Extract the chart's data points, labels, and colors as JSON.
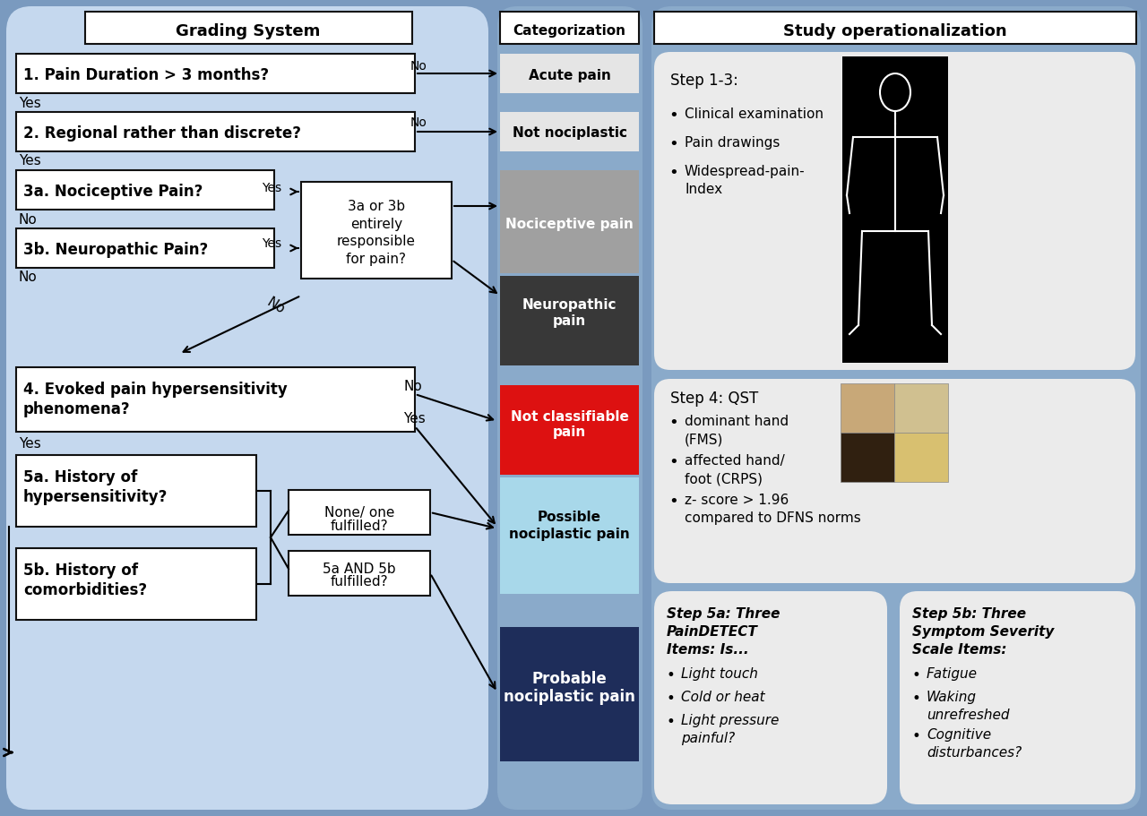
{
  "fig_width": 12.8,
  "fig_height": 9.11,
  "bg_outer": "#7a9abf",
  "bg_left_panel": "#c5d8ee",
  "bg_mid_panel": "#8aaaca",
  "bg_right_panel": "#8aaaca",
  "box_white": "#ffffff",
  "box_gray": "#a0a0a0",
  "box_dark_gray": "#383838",
  "box_red": "#dd1111",
  "box_light_blue": "#a8d8ea",
  "box_dark_blue": "#1e2d5a",
  "text_black": "#000000",
  "text_white": "#ffffff",
  "title_left": "Grading System",
  "title_mid": "Categorization",
  "title_right": "Study operationalization",
  "q1": "1. Pain Duration > 3 months?",
  "q2": "2. Regional rather than discrete?",
  "q3a": "3a. Nociceptive Pain?",
  "q3b": "3b. Neuropathic Pain?",
  "q3ab_box": "3a or 3b\nentirely\nresponsible\nfor pain?",
  "q4_line1": "4. Evoked pain hypersensitivity",
  "q4_line2": "phenomena?",
  "q5a_line1": "5a. History of",
  "q5a_line2": "hypersensitivity?",
  "q5b_line1": "5b. History of",
  "q5b_line2": "comorbidities?",
  "none_one_line1": "None/ one",
  "none_one_line2": "fulfilled?",
  "and_box_line1": "5a AND 5b",
  "and_box_line2": "fulfilled?",
  "cat1": "Acute pain",
  "cat2": "Not nociplastic",
  "cat3": "Nociceptive pain",
  "cat4_line1": "Neuropathic",
  "cat4_line2": "pain",
  "cat5_line1": "Not classifiable",
  "cat5_line2": "pain",
  "cat6_line1": "Possible",
  "cat6_line2": "nociplastic pain",
  "cat7_line1": "Probable",
  "cat7_line2": "nociplastic pain",
  "step13_title": "Step 1-3:",
  "step13_b1": "Clinical examination",
  "step13_b2": "Pain drawings",
  "step13_b3a": "Widespread-pain-",
  "step13_b3b": "Index",
  "step4_title": "Step 4: QST",
  "step4_b1a": "dominant hand",
  "step4_b1b": "(FMS)",
  "step4_b2a": "affected hand/",
  "step4_b2b": "foot (CRPS)",
  "step4_b3a": "z- score > 1.96",
  "step4_b3b": "compared to DFNS norms",
  "step5a_t1": "Step 5a: Three",
  "step5a_t2": "PainDETECT",
  "step5a_t3": "Items: Is...",
  "step5a_b1": "Light touch",
  "step5a_b2": "Cold or heat",
  "step5a_b3a": "Light pressure",
  "step5a_b3b": "painful?",
  "step5b_t1": "Step 5b: Three",
  "step5b_t2": "Symptom Severity",
  "step5b_t3": "Scale Items:",
  "step5b_b1": "Fatigue",
  "step5b_b2a": "Waking",
  "step5b_b2b": "unrefreshed",
  "step5b_b3a": "Cognitive",
  "step5b_b3b": "disturbances?"
}
